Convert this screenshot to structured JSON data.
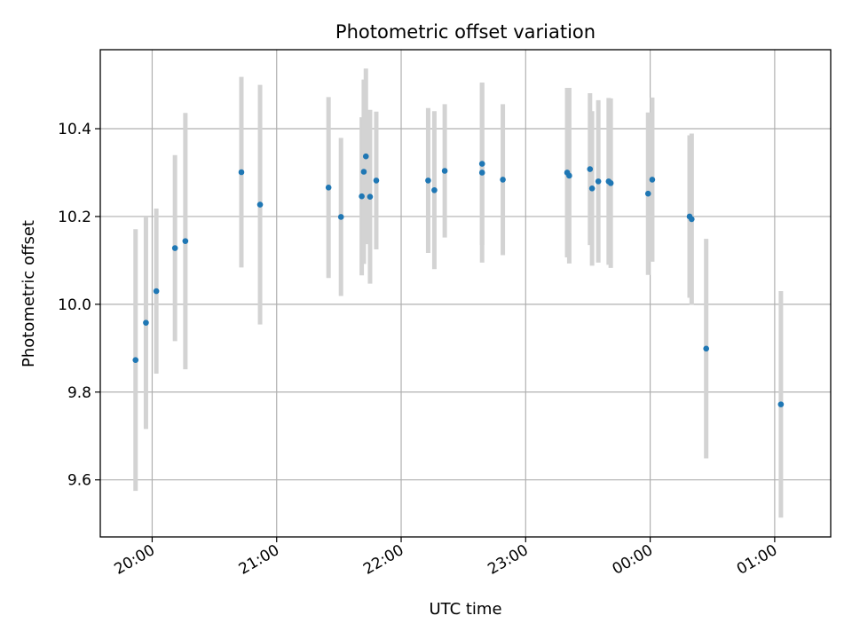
{
  "chart_data": {
    "type": "scatter",
    "title": "Photometric offset variation",
    "xlabel": "UTC time",
    "ylabel": "Photometric offset",
    "x_axis_type": "time",
    "xlim": [
      "19:35",
      "01:27"
    ],
    "ylim": [
      9.47,
      10.58
    ],
    "x_ticks": [
      "20:00",
      "21:00",
      "22:00",
      "23:00",
      "00:00",
      "01:00"
    ],
    "x_tick_values": [
      "20:00",
      "21:00",
      "22:00",
      "23:00",
      "00:00",
      "01:00"
    ],
    "y_ticks": [
      "9.6",
      "9.8",
      "10.0",
      "10.2",
      "10.4"
    ],
    "y_tick_values": [
      9.6,
      9.8,
      10.0,
      10.2,
      10.4
    ],
    "grid": true,
    "marker_color": "#1f77b4",
    "errorbar_color": "#d3d3d3",
    "points": [
      {
        "x": "19:52",
        "y": 9.873,
        "err": 0.298
      },
      {
        "x": "19:57",
        "y": 9.958,
        "err": 0.242
      },
      {
        "x": "20:02",
        "y": 10.03,
        "err": 0.188
      },
      {
        "x": "20:11",
        "y": 10.128,
        "err": 0.212
      },
      {
        "x": "20:16",
        "y": 10.144,
        "err": 0.292
      },
      {
        "x": "20:43",
        "y": 10.301,
        "err": 0.217
      },
      {
        "x": "20:52",
        "y": 10.227,
        "err": 0.273
      },
      {
        "x": "21:25",
        "y": 10.266,
        "err": 0.206
      },
      {
        "x": "21:31",
        "y": 10.199,
        "err": 0.18
      },
      {
        "x": "21:41",
        "y": 10.246,
        "err": 0.18
      },
      {
        "x": "21:42",
        "y": 10.302,
        "err": 0.21
      },
      {
        "x": "21:43",
        "y": 10.337,
        "err": 0.2
      },
      {
        "x": "21:45",
        "y": 10.245,
        "err": 0.198
      },
      {
        "x": "21:48",
        "y": 10.282,
        "err": 0.157
      },
      {
        "x": "22:13",
        "y": 10.282,
        "err": 0.165
      },
      {
        "x": "22:16",
        "y": 10.26,
        "err": 0.18
      },
      {
        "x": "22:21",
        "y": 10.304,
        "err": 0.152
      },
      {
        "x": "22:39",
        "y": 10.32,
        "err": 0.185
      },
      {
        "x": "22:39",
        "y": 10.3,
        "err": 0.205
      },
      {
        "x": "22:49",
        "y": 10.284,
        "err": 0.172
      },
      {
        "x": "23:20",
        "y": 10.3,
        "err": 0.193
      },
      {
        "x": "23:21",
        "y": 10.293,
        "err": 0.2
      },
      {
        "x": "23:31",
        "y": 10.308,
        "err": 0.173
      },
      {
        "x": "23:32",
        "y": 10.264,
        "err": 0.176
      },
      {
        "x": "23:35",
        "y": 10.28,
        "err": 0.185
      },
      {
        "x": "23:40",
        "y": 10.28,
        "err": 0.19
      },
      {
        "x": "23:41",
        "y": 10.276,
        "err": 0.193
      },
      {
        "x": "23:59",
        "y": 10.252,
        "err": 0.185
      },
      {
        "x": "00:01",
        "y": 10.284,
        "err": 0.187
      },
      {
        "x": "00:19",
        "y": 10.2,
        "err": 0.185
      },
      {
        "x": "00:20",
        "y": 10.194,
        "err": 0.195
      },
      {
        "x": "00:27",
        "y": 9.899,
        "err": 0.25
      },
      {
        "x": "01:03",
        "y": 9.772,
        "err": 0.258
      }
    ]
  }
}
